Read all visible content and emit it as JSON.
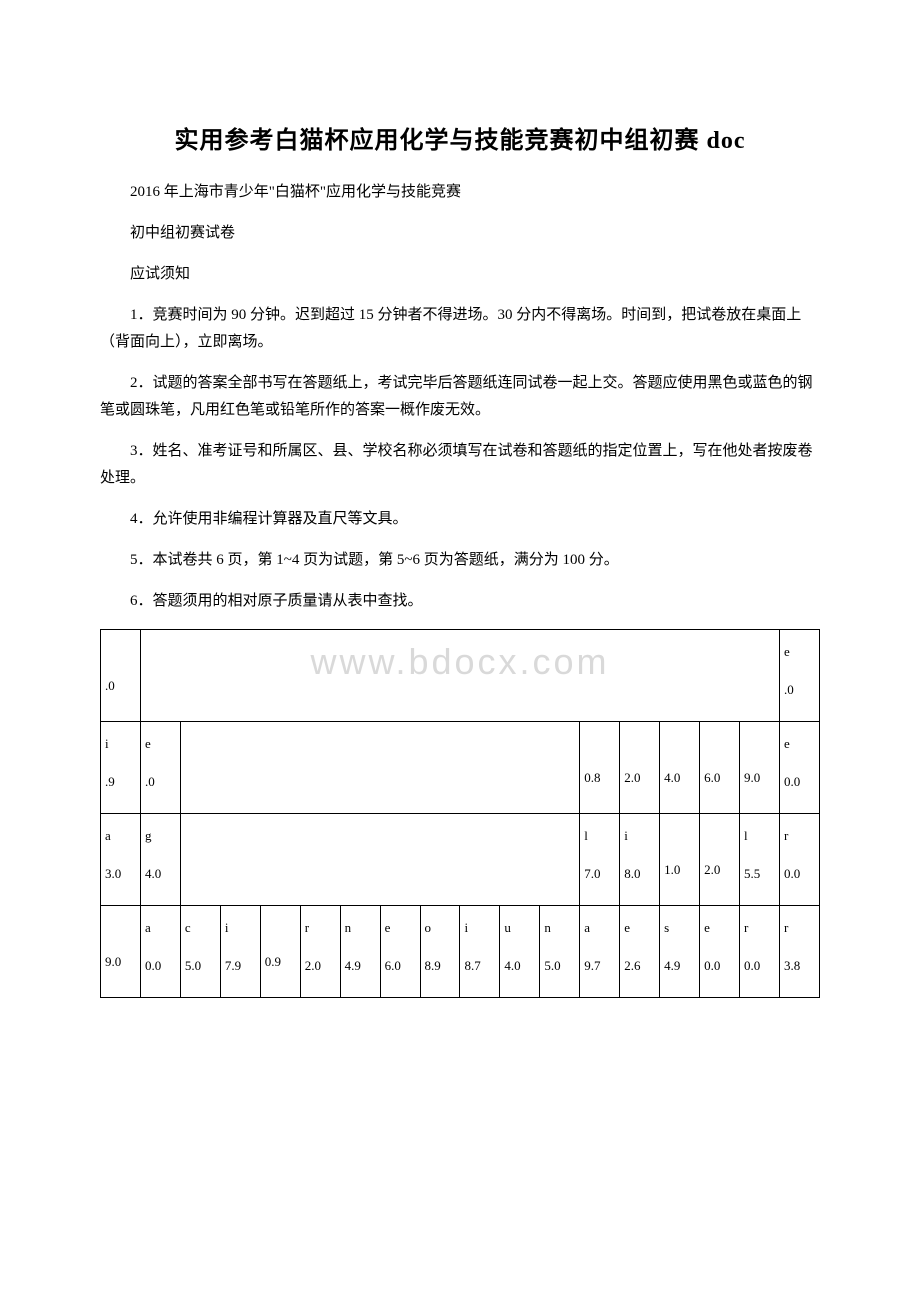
{
  "watermark": "www.bdocx.com",
  "title": "实用参考白猫杯应用化学与技能竞赛初中组初赛 doc",
  "subtitle_line": "2016 年上海市青少年\"白猫杯\"应用化学与技能竞赛",
  "paper_type": "初中组初赛试卷",
  "notice_header": "应试须知",
  "notices": [
    "1．竞赛时间为 90 分钟。迟到超过 15 分钟者不得进场。30 分内不得离场。时间到，把试卷放在桌面上（背面向上），立即离场。",
    "2．试题的答案全部书写在答题纸上，考试完毕后答题纸连同试卷一起上交。答题应使用黑色或蓝色的钢笔或圆珠笔，凡用红色笔或铅笔所作的答案一概作废无效。",
    "3．姓名、准考证号和所属区、县、学校名称必须填写在试卷和答题纸的指定位置上，写在他处者按废卷处理。",
    "4．允许使用非编程计算器及直尺等文具。",
    "5．本试卷共 6 页，第 1~4 页为试题，第 5~6 页为答题纸，满分为 100 分。",
    "6．答题须用的相对原子质量请从表中查找。"
  ],
  "table": {
    "border_color": "#000000",
    "font_family": "Times New Roman",
    "cell_fontsize": 13,
    "rows": [
      {
        "cells": [
          {
            "top": "",
            "bot": ".0",
            "span": 1
          },
          {
            "top": "",
            "bot": "",
            "span": 16
          },
          {
            "top": "e",
            "bot": ".0",
            "span": 1
          }
        ],
        "tall": true
      },
      {
        "cells": [
          {
            "top": "i",
            "bot": ".9"
          },
          {
            "top": "e",
            "bot": ".0"
          },
          {
            "top": "",
            "bot": "",
            "span": 10
          },
          {
            "top": "",
            "bot": "0.8"
          },
          {
            "top": "",
            "bot": "2.0"
          },
          {
            "top": "",
            "bot": "4.0"
          },
          {
            "top": "",
            "bot": "6.0"
          },
          {
            "top": "",
            "bot": "9.0"
          },
          {
            "top": "e",
            "bot": "0.0"
          }
        ],
        "tall": true
      },
      {
        "cells": [
          {
            "top": "a",
            "bot": "3.0"
          },
          {
            "top": "g",
            "bot": "4.0"
          },
          {
            "top": "",
            "bot": "",
            "span": 10
          },
          {
            "top": "l",
            "bot": "7.0"
          },
          {
            "top": "i",
            "bot": "8.0"
          },
          {
            "top": "",
            "bot": "1.0"
          },
          {
            "top": "",
            "bot": "2.0"
          },
          {
            "top": "l",
            "bot": "5.5"
          },
          {
            "top": "r",
            "bot": "0.0"
          }
        ],
        "tall": true
      },
      {
        "cells": [
          {
            "top": "",
            "bot": "9.0"
          },
          {
            "top": "a",
            "bot": "0.0"
          },
          {
            "top": "c",
            "bot": "5.0"
          },
          {
            "top": "i",
            "bot": "7.9"
          },
          {
            "top": "",
            "bot": "0.9"
          },
          {
            "top": "r",
            "bot": "2.0"
          },
          {
            "top": "n",
            "bot": "4.9"
          },
          {
            "top": "e",
            "bot": "6.0"
          },
          {
            "top": "o",
            "bot": "8.9"
          },
          {
            "top": "i",
            "bot": "8.7"
          },
          {
            "top": "u",
            "bot": "4.0"
          },
          {
            "top": "n",
            "bot": "5.0"
          },
          {
            "top": "a",
            "bot": "9.7"
          },
          {
            "top": "e",
            "bot": "2.6"
          },
          {
            "top": "s",
            "bot": "4.9"
          },
          {
            "top": "e",
            "bot": "0.0"
          },
          {
            "top": "r",
            "bot": "0.0"
          },
          {
            "top": "r",
            "bot": "3.8"
          }
        ],
        "tall": true
      }
    ]
  }
}
